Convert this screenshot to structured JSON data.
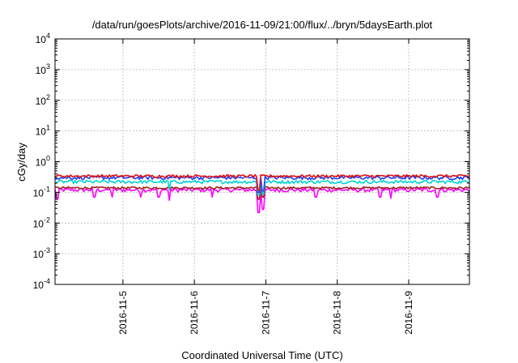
{
  "chart_data": {
    "type": "line",
    "title": "/data/run/goesPlots/archive/2016-11-09/21:00/flux/../bryn/5daysEarth.plot",
    "xlabel": "Coordinated Universal Time (UTC)",
    "ylabel": "cGy/day",
    "x_unit": "days",
    "xlim": [
      4.05,
      9.85
    ],
    "ylim": [
      0.0001,
      10000
    ],
    "y_scale": "log",
    "grid": true,
    "x_ticks": [
      {
        "value": 5,
        "label": "2016-11-5"
      },
      {
        "value": 6,
        "label": "2016-11-6"
      },
      {
        "value": 7,
        "label": "2016-11-7"
      },
      {
        "value": 8,
        "label": "2016-11-8"
      },
      {
        "value": 9,
        "label": "2016-11-9"
      }
    ],
    "y_ticks": [
      {
        "value": 0.0001,
        "base": "10",
        "exp": "-4"
      },
      {
        "value": 0.001,
        "base": "10",
        "exp": "-3"
      },
      {
        "value": 0.01,
        "base": "10",
        "exp": "-2"
      },
      {
        "value": 0.1,
        "base": "10",
        "exp": "-1"
      },
      {
        "value": 1,
        "base": "10",
        "exp": "0"
      },
      {
        "value": 10,
        "base": "10",
        "exp": "1"
      },
      {
        "value": 100,
        "base": "10",
        "exp": "2"
      },
      {
        "value": 1000,
        "base": "10",
        "exp": "3"
      },
      {
        "value": 10000,
        "base": "10",
        "exp": "4"
      }
    ],
    "series": [
      {
        "color": "#ff00ff",
        "base": 0.12,
        "noise": 0.15,
        "dips": [
          {
            "x": 4.08,
            "y": 0.06
          },
          {
            "x": 4.6,
            "y": 0.07
          },
          {
            "x": 4.85,
            "y": 0.07
          },
          {
            "x": 5.25,
            "y": 0.07
          },
          {
            "x": 5.5,
            "y": 0.07
          },
          {
            "x": 5.65,
            "y": 0.055
          },
          {
            "x": 6.25,
            "y": 0.07
          },
          {
            "x": 6.9,
            "y": 0.022
          },
          {
            "x": 6.96,
            "y": 0.028
          },
          {
            "x": 7.7,
            "y": 0.07
          },
          {
            "x": 8.6,
            "y": 0.07
          },
          {
            "x": 8.75,
            "y": 0.065
          },
          {
            "x": 9.4,
            "y": 0.07
          }
        ]
      },
      {
        "color": "#a02020",
        "base": 0.14,
        "noise": 0.08,
        "dips": [
          {
            "x": 6.9,
            "y": 0.06
          },
          {
            "x": 6.96,
            "y": 0.07
          }
        ]
      },
      {
        "color": "#00d4d4",
        "base": 0.22,
        "noise": 0.12,
        "dips": [
          {
            "x": 6.9,
            "y": 0.08
          },
          {
            "x": 6.96,
            "y": 0.09
          },
          {
            "x": 5.65,
            "y": 0.12
          }
        ]
      },
      {
        "color": "#2040ff",
        "base": 0.3,
        "noise": 0.13,
        "dips": [
          {
            "x": 6.9,
            "y": 0.1
          },
          {
            "x": 6.96,
            "y": 0.11
          }
        ]
      },
      {
        "color": "#e01010",
        "base": 0.34,
        "noise": 0.1,
        "dips": [
          {
            "x": 6.9,
            "y": 0.12
          }
        ]
      }
    ]
  }
}
